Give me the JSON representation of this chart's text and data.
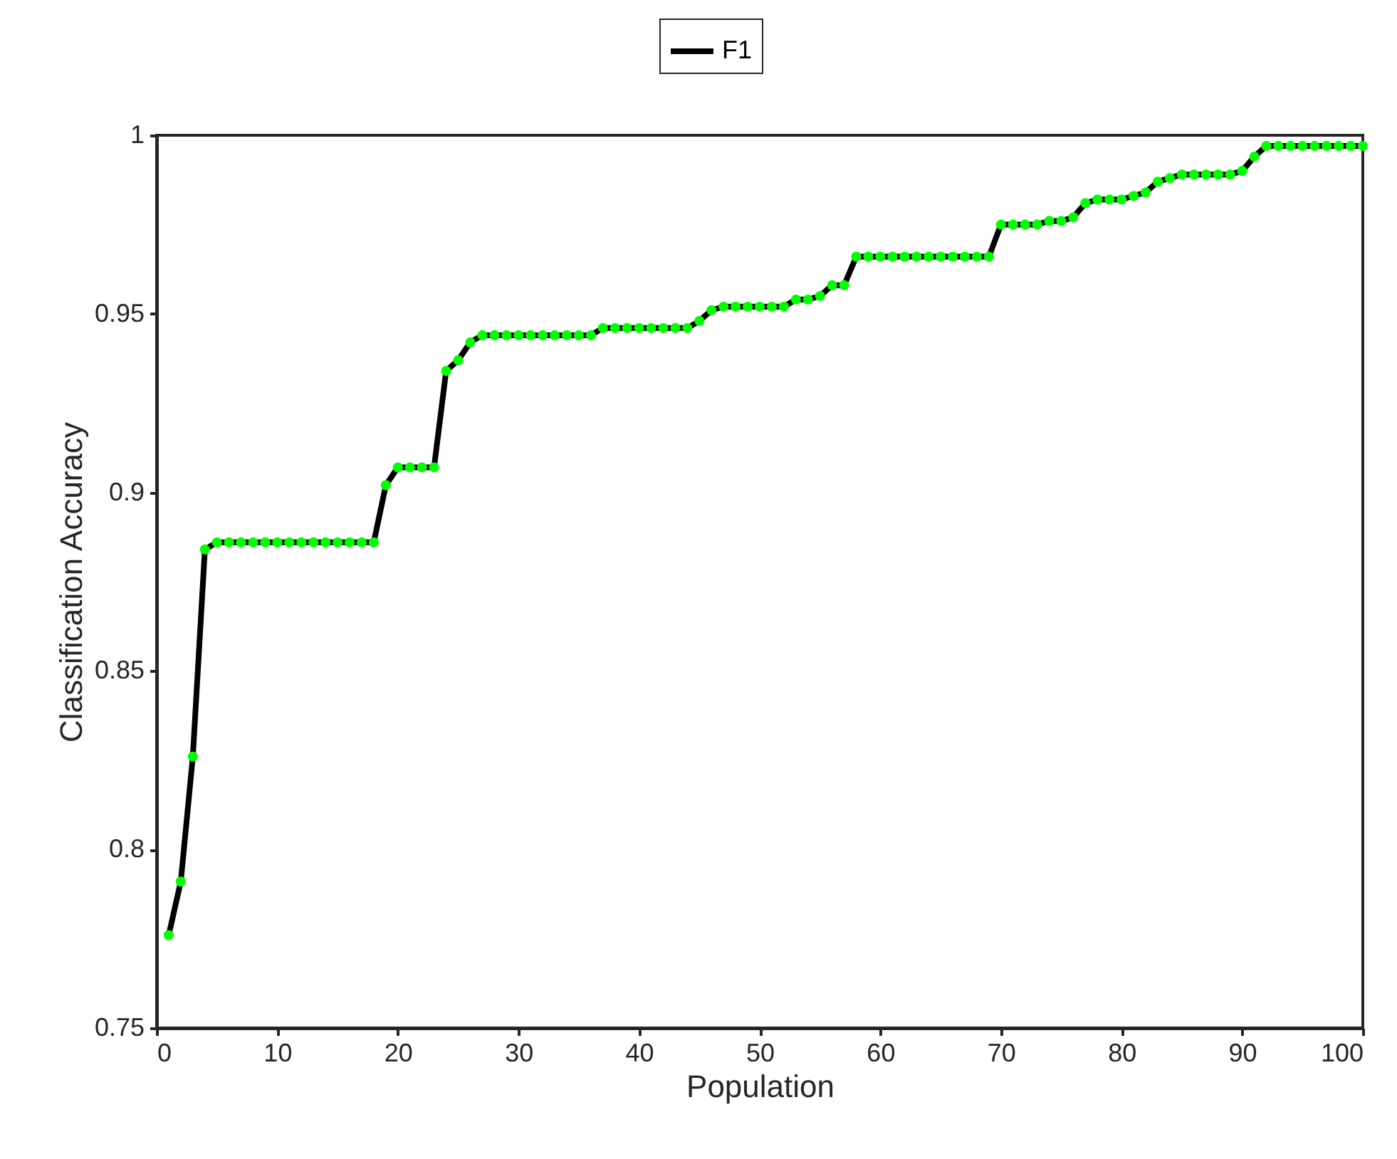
{
  "chart_data": {
    "type": "line",
    "xlabel": "Population",
    "ylabel": "Classification Accuracy",
    "x": [
      1,
      2,
      3,
      4,
      5,
      6,
      7,
      8,
      9,
      10,
      11,
      12,
      13,
      14,
      15,
      16,
      17,
      18,
      19,
      20,
      21,
      22,
      23,
      24,
      25,
      26,
      27,
      28,
      29,
      30,
      31,
      32,
      33,
      34,
      35,
      36,
      37,
      38,
      39,
      40,
      41,
      42,
      43,
      44,
      45,
      46,
      47,
      48,
      49,
      50,
      51,
      52,
      53,
      54,
      55,
      56,
      57,
      58,
      59,
      60,
      61,
      62,
      63,
      64,
      65,
      66,
      67,
      68,
      69,
      70,
      71,
      72,
      73,
      74,
      75,
      76,
      77,
      78,
      79,
      80,
      81,
      82,
      83,
      84,
      85,
      86,
      87,
      88,
      89,
      90,
      91,
      92,
      93,
      94,
      95,
      96,
      97,
      98,
      99,
      100
    ],
    "series": [
      {
        "name": "F1",
        "color": "#000000",
        "values": [
          0.776,
          0.791,
          0.826,
          0.884,
          0.886,
          0.886,
          0.886,
          0.886,
          0.886,
          0.886,
          0.886,
          0.886,
          0.886,
          0.886,
          0.886,
          0.886,
          0.886,
          0.886,
          0.902,
          0.907,
          0.907,
          0.907,
          0.907,
          0.934,
          0.937,
          0.942,
          0.944,
          0.944,
          0.944,
          0.944,
          0.944,
          0.944,
          0.944,
          0.944,
          0.944,
          0.944,
          0.946,
          0.946,
          0.946,
          0.946,
          0.946,
          0.946,
          0.946,
          0.946,
          0.948,
          0.951,
          0.952,
          0.952,
          0.952,
          0.952,
          0.952,
          0.952,
          0.954,
          0.954,
          0.955,
          0.958,
          0.958,
          0.966,
          0.966,
          0.966,
          0.966,
          0.966,
          0.966,
          0.966,
          0.966,
          0.966,
          0.966,
          0.966,
          0.966,
          0.975,
          0.975,
          0.975,
          0.975,
          0.976,
          0.976,
          0.977,
          0.981,
          0.982,
          0.982,
          0.982,
          0.983,
          0.984,
          0.987,
          0.988,
          0.989,
          0.989,
          0.989,
          0.989,
          0.989,
          0.99,
          0.994,
          0.997,
          0.997,
          0.997,
          0.997,
          0.997,
          0.997,
          0.997,
          0.997,
          0.997
        ]
      }
    ],
    "xlim": [
      0,
      100
    ],
    "xticks": [
      0,
      10,
      20,
      30,
      40,
      50,
      60,
      70,
      80,
      90,
      100
    ],
    "ylim": [
      0.75,
      1
    ],
    "yticks": [
      0.75,
      0.8,
      0.85,
      0.9,
      0.95,
      1
    ],
    "grid": false,
    "legend": "top",
    "marker": "circle",
    "line_style": "solid"
  }
}
